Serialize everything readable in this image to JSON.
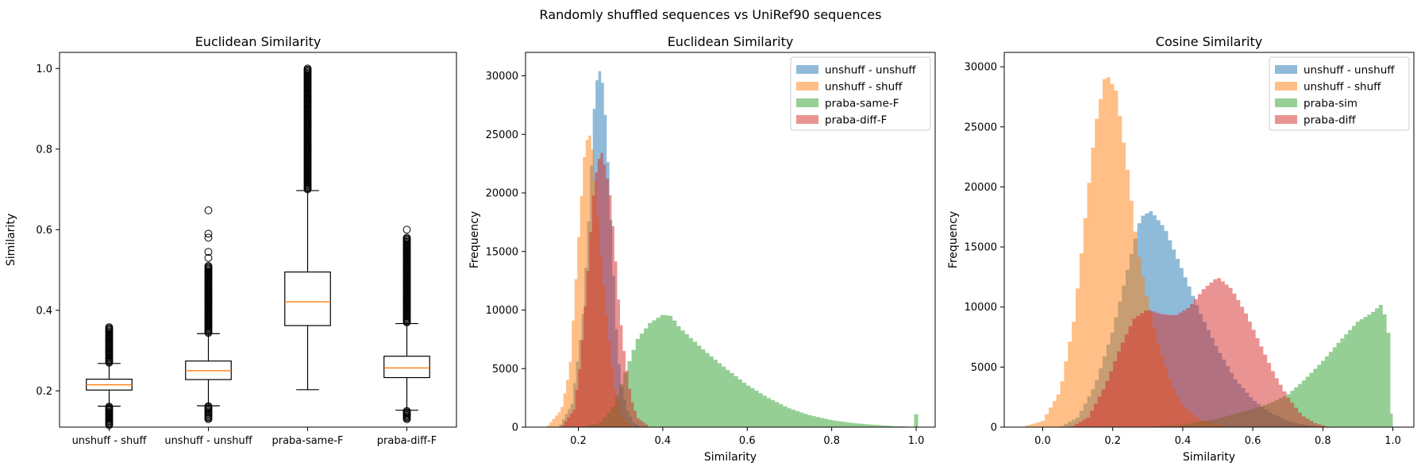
{
  "figure": {
    "suptitle": "Randomly shuffled sequences vs UniRef90 sequences"
  },
  "chart_data": [
    {
      "type": "box",
      "title": "Euclidean Similarity",
      "xlabel": "",
      "ylabel": "Similarity",
      "ylim": [
        0.11,
        1.04
      ],
      "yticks": [
        0.2,
        0.4,
        0.6,
        0.8,
        1.0
      ],
      "ytick_labels": [
        "0.2",
        "0.4",
        "0.6",
        "0.8",
        "1.0"
      ],
      "categories": [
        "unshuff - shuff",
        "unshuff - unshuff",
        "praba-same-F",
        "praba-diff-F"
      ],
      "boxes": [
        {
          "whislo": 0.162,
          "q1": 0.202,
          "median": 0.215,
          "q3": 0.229,
          "whishi": 0.268,
          "fliers_low": [
            0.115,
            0.161
          ],
          "fliers_high": [
            0.27,
            0.358
          ]
        },
        {
          "whislo": 0.163,
          "q1": 0.228,
          "median": 0.25,
          "q3": 0.274,
          "whishi": 0.342,
          "fliers_low": [
            0.13,
            0.162
          ],
          "fliers_high": [
            0.344,
            0.51,
            0.53,
            0.545,
            0.58,
            0.59,
            0.648
          ]
        },
        {
          "whislo": 0.203,
          "q1": 0.362,
          "median": 0.421,
          "q3": 0.495,
          "whishi": 0.697,
          "fliers_low": [],
          "fliers_high": [
            0.7,
            1.0
          ]
        },
        {
          "whislo": 0.152,
          "q1": 0.233,
          "median": 0.257,
          "q3": 0.286,
          "whishi": 0.367,
          "fliers_low": [
            0.13,
            0.15
          ],
          "fliers_high": [
            0.37,
            0.58,
            0.6
          ]
        }
      ]
    },
    {
      "type": "histogram",
      "title": "Euclidean Similarity",
      "xlabel": "Similarity",
      "ylabel": "Frequency",
      "xlim": [
        0.075,
        1.045
      ],
      "ylim": [
        0,
        32000
      ],
      "xticks": [
        0.2,
        0.4,
        0.6,
        0.8,
        1.0
      ],
      "xtick_labels": [
        "0.2",
        "0.4",
        "0.6",
        "0.8",
        "1.0"
      ],
      "yticks": [
        0,
        5000,
        10000,
        15000,
        20000,
        25000,
        30000
      ],
      "ytick_labels": [
        "0",
        "5000",
        "10000",
        "15000",
        "20000",
        "25000",
        "30000"
      ],
      "legend_position": "upper right",
      "series": [
        {
          "name": "unshuff - unshuff",
          "color": "#1f77b4",
          "alpha": 0.5,
          "bin_width": 0.0066,
          "points": [
            [
              0.155,
              0
            ],
            [
              0.185,
              2000
            ],
            [
              0.21,
              9000
            ],
            [
              0.225,
              18000
            ],
            [
              0.24,
              29000
            ],
            [
              0.25,
              30500
            ],
            [
              0.26,
              29000
            ],
            [
              0.27,
              23000
            ],
            [
              0.28,
              15500
            ],
            [
              0.29,
              8500
            ],
            [
              0.3,
              4000
            ],
            [
              0.315,
              1500
            ],
            [
              0.33,
              400
            ],
            [
              0.35,
              0
            ]
          ]
        },
        {
          "name": "unshuff - shuff",
          "color": "#ff7f0e",
          "alpha": 0.5,
          "bin_width": 0.0066,
          "points": [
            [
              0.125,
              0
            ],
            [
              0.16,
              1500
            ],
            [
              0.18,
              5000
            ],
            [
              0.195,
              13000
            ],
            [
              0.205,
              18500
            ],
            [
              0.215,
              23500
            ],
            [
              0.225,
              25300
            ],
            [
              0.235,
              23500
            ],
            [
              0.245,
              19000
            ],
            [
              0.255,
              14000
            ],
            [
              0.27,
              8500
            ],
            [
              0.285,
              3500
            ],
            [
              0.3,
              1000
            ],
            [
              0.325,
              0
            ]
          ]
        },
        {
          "name": "praba-same-F",
          "color": "#2ca02c",
          "alpha": 0.5,
          "bin_width": 0.0097,
          "points": [
            [
              0.2,
              0
            ],
            [
              0.25,
              300
            ],
            [
              0.28,
              1500
            ],
            [
              0.31,
              4500
            ],
            [
              0.34,
              7500
            ],
            [
              0.37,
              8900
            ],
            [
              0.4,
              9600
            ],
            [
              0.42,
              9500
            ],
            [
              0.44,
              8500
            ],
            [
              0.47,
              7500
            ],
            [
              0.5,
              6500
            ],
            [
              0.55,
              5000
            ],
            [
              0.6,
              3600
            ],
            [
              0.65,
              2500
            ],
            [
              0.7,
              1600
            ],
            [
              0.75,
              1000
            ],
            [
              0.8,
              600
            ],
            [
              0.85,
              350
            ],
            [
              0.9,
              200
            ],
            [
              0.95,
              80
            ],
            [
              0.985,
              40
            ]
          ],
          "spike": [
            1.0,
            1100
          ]
        },
        {
          "name": "praba-diff-F",
          "color": "#d62728",
          "alpha": 0.5,
          "bin_width": 0.0066,
          "points": [
            [
              0.16,
              0
            ],
            [
              0.19,
              1500
            ],
            [
              0.205,
              5500
            ],
            [
              0.22,
              12000
            ],
            [
              0.235,
              19500
            ],
            [
              0.245,
              22500
            ],
            [
              0.255,
              23500
            ],
            [
              0.265,
              22000
            ],
            [
              0.275,
              20000
            ],
            [
              0.285,
              16000
            ],
            [
              0.295,
              11000
            ],
            [
              0.31,
              6000
            ],
            [
              0.325,
              2500
            ],
            [
              0.34,
              800
            ],
            [
              0.37,
              0
            ]
          ]
        }
      ]
    },
    {
      "type": "histogram",
      "title": "Cosine Similarity",
      "xlabel": "Similarity",
      "ylabel": "Frequency",
      "xlim": [
        -0.11,
        1.06
      ],
      "ylim": [
        0,
        31200
      ],
      "xticks": [
        0.0,
        0.2,
        0.4,
        0.6,
        0.8,
        1.0
      ],
      "xtick_labels": [
        "0.0",
        "0.2",
        "0.4",
        "0.6",
        "0.8",
        "1.0"
      ],
      "yticks": [
        0,
        5000,
        10000,
        15000,
        20000,
        25000,
        30000
      ],
      "ytick_labels": [
        "0",
        "5000",
        "10000",
        "15000",
        "20000",
        "25000",
        "30000"
      ],
      "legend_position": "upper right",
      "series": [
        {
          "name": "unshuff - unshuff",
          "color": "#1f77b4",
          "alpha": 0.5,
          "bin_width": 0.011,
          "points": [
            [
              0.05,
              0
            ],
            [
              0.1,
              800
            ],
            [
              0.15,
              3500
            ],
            [
              0.2,
              8000
            ],
            [
              0.25,
              14000
            ],
            [
              0.28,
              17500
            ],
            [
              0.31,
              18000
            ],
            [
              0.35,
              16500
            ],
            [
              0.4,
              13000
            ],
            [
              0.45,
              9500
            ],
            [
              0.5,
              6500
            ],
            [
              0.55,
              4000
            ],
            [
              0.6,
              2300
            ],
            [
              0.65,
              1200
            ],
            [
              0.7,
              500
            ],
            [
              0.75,
              200
            ],
            [
              0.8,
              0
            ]
          ]
        },
        {
          "name": "unshuff - shuff",
          "color": "#ff7f0e",
          "alpha": 0.5,
          "bin_width": 0.011,
          "points": [
            [
              -0.06,
              0
            ],
            [
              0.0,
              500
            ],
            [
              0.05,
              3000
            ],
            [
              0.09,
              9000
            ],
            [
              0.12,
              17000
            ],
            [
              0.15,
              25000
            ],
            [
              0.18,
              29500
            ],
            [
              0.21,
              28000
            ],
            [
              0.24,
              22000
            ],
            [
              0.27,
              15000
            ],
            [
              0.3,
              10500
            ],
            [
              0.33,
              7000
            ],
            [
              0.37,
              3500
            ],
            [
              0.4,
              1800
            ],
            [
              0.45,
              600
            ],
            [
              0.5,
              200
            ],
            [
              0.55,
              0
            ]
          ]
        },
        {
          "name": "praba-sim",
          "color": "#2ca02c",
          "alpha": 0.5,
          "bin_width": 0.011,
          "points": [
            [
              0.3,
              0
            ],
            [
              0.4,
              200
            ],
            [
              0.5,
              700
            ],
            [
              0.6,
              1500
            ],
            [
              0.65,
              2000
            ],
            [
              0.7,
              2700
            ],
            [
              0.75,
              4000
            ],
            [
              0.8,
              5500
            ],
            [
              0.85,
              7200
            ],
            [
              0.9,
              8800
            ],
            [
              0.94,
              9500
            ],
            [
              0.97,
              10300
            ],
            [
              0.99,
              7500
            ],
            [
              1.0,
              0
            ]
          ]
        },
        {
          "name": "praba-diff",
          "color": "#d62728",
          "alpha": 0.5,
          "bin_width": 0.011,
          "points": [
            [
              0.08,
              0
            ],
            [
              0.13,
              800
            ],
            [
              0.18,
              3500
            ],
            [
              0.22,
              6500
            ],
            [
              0.26,
              9000
            ],
            [
              0.3,
              9800
            ],
            [
              0.34,
              9400
            ],
            [
              0.38,
              9300
            ],
            [
              0.42,
              10000
            ],
            [
              0.46,
              11500
            ],
            [
              0.5,
              12500
            ],
            [
              0.54,
              11500
            ],
            [
              0.58,
              9500
            ],
            [
              0.62,
              7000
            ],
            [
              0.66,
              4500
            ],
            [
              0.7,
              2500
            ],
            [
              0.74,
              1000
            ],
            [
              0.78,
              300
            ],
            [
              0.82,
              0
            ]
          ]
        }
      ]
    }
  ]
}
